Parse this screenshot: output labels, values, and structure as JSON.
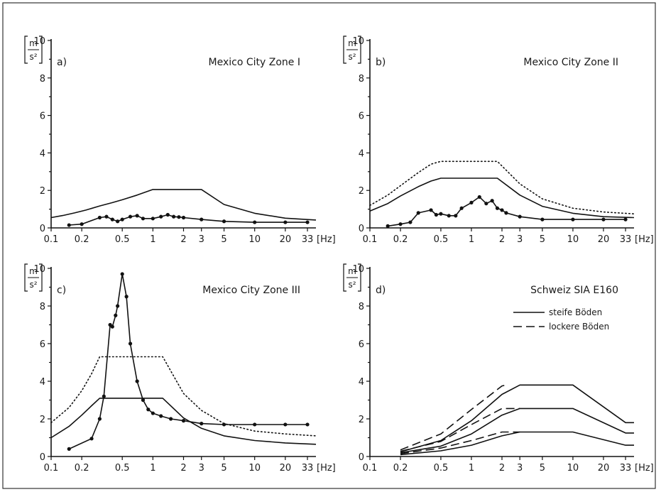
{
  "x_unit": "[Hz]",
  "y_unit": {
    "numerator": "m",
    "denominator": "s²"
  },
  "chart_data": [
    {
      "type": "line",
      "letter": "a)",
      "title": "Mexico City Zone I",
      "x_scale": "log",
      "xlim": [
        0.1,
        40
      ],
      "ylim": [
        0,
        10
      ],
      "x_ticks": [
        "0.1",
        "0.2",
        "0.5",
        "1",
        "2",
        "3",
        "5",
        "10",
        "20",
        "33"
      ],
      "y_ticks": [
        "0",
        "2",
        "4",
        "6",
        "8",
        "10"
      ],
      "series": [
        {
          "style": "solid",
          "markers": false,
          "x": [
            0.1,
            0.13,
            0.17,
            0.22,
            0.3,
            0.4,
            0.5,
            0.7,
            1,
            1.2,
            2,
            3,
            5,
            10,
            20,
            40
          ],
          "y": [
            0.55,
            0.66,
            0.8,
            0.95,
            1.17,
            1.35,
            1.5,
            1.75,
            2.05,
            2.05,
            2.05,
            2.05,
            1.25,
            0.78,
            0.52,
            0.42
          ]
        },
        {
          "style": "solid",
          "markers": true,
          "x": [
            0.15,
            0.2,
            0.3,
            0.35,
            0.4,
            0.45,
            0.5,
            0.6,
            0.7,
            0.8,
            1,
            1.2,
            1.4,
            1.6,
            1.8,
            2,
            3,
            5,
            10,
            20,
            33
          ],
          "y": [
            0.15,
            0.2,
            0.55,
            0.6,
            0.45,
            0.35,
            0.45,
            0.6,
            0.65,
            0.5,
            0.5,
            0.6,
            0.7,
            0.6,
            0.58,
            0.55,
            0.45,
            0.35,
            0.3,
            0.3,
            0.3
          ]
        }
      ]
    },
    {
      "type": "line",
      "letter": "b)",
      "title": "Mexico City Zone II",
      "x_scale": "log",
      "xlim": [
        0.1,
        40
      ],
      "ylim": [
        0,
        10
      ],
      "x_ticks": [
        "0.1",
        "0.2",
        "0.5",
        "1",
        "2",
        "3",
        "5",
        "10",
        "20",
        "33"
      ],
      "y_ticks": [
        "0",
        "2",
        "4",
        "6",
        "8",
        "10"
      ],
      "series": [
        {
          "style": "dotted",
          "markers": false,
          "x": [
            0.1,
            0.15,
            0.2,
            0.3,
            0.4,
            0.5,
            1,
            1.8,
            3,
            5,
            10,
            20,
            40
          ],
          "y": [
            1.2,
            1.75,
            2.25,
            2.95,
            3.4,
            3.55,
            3.55,
            3.55,
            2.35,
            1.55,
            1.05,
            0.85,
            0.75
          ]
        },
        {
          "style": "solid",
          "markers": false,
          "x": [
            0.1,
            0.15,
            0.2,
            0.3,
            0.4,
            0.5,
            1,
            1.8,
            3,
            5,
            10,
            20,
            40
          ],
          "y": [
            0.9,
            1.3,
            1.7,
            2.2,
            2.5,
            2.65,
            2.65,
            2.65,
            1.75,
            1.15,
            0.78,
            0.6,
            0.55
          ]
        },
        {
          "style": "solid",
          "markers": true,
          "x": [
            0.15,
            0.2,
            0.25,
            0.3,
            0.4,
            0.45,
            0.5,
            0.6,
            0.7,
            0.8,
            1,
            1.2,
            1.4,
            1.6,
            1.8,
            2,
            2.2,
            3,
            5,
            10,
            20,
            33
          ],
          "y": [
            0.1,
            0.2,
            0.3,
            0.8,
            0.95,
            0.7,
            0.75,
            0.65,
            0.65,
            1.05,
            1.35,
            1.65,
            1.3,
            1.45,
            1.05,
            0.95,
            0.8,
            0.6,
            0.45,
            0.45,
            0.45,
            0.45
          ]
        }
      ]
    },
    {
      "type": "line",
      "letter": "c)",
      "title": "Mexico City Zone III",
      "x_scale": "log",
      "xlim": [
        0.1,
        40
      ],
      "ylim": [
        0,
        10
      ],
      "x_ticks": [
        "0.1",
        "0.2",
        "0.5",
        "1",
        "2",
        "3",
        "5",
        "10",
        "20",
        "33"
      ],
      "y_ticks": [
        "0",
        "2",
        "4",
        "6",
        "8",
        "10"
      ],
      "series": [
        {
          "style": "dotted",
          "markers": false,
          "x": [
            0.1,
            0.15,
            0.2,
            0.25,
            0.3,
            0.5,
            1,
            1.25,
            2,
            3,
            5,
            10,
            20,
            40
          ],
          "y": [
            1.8,
            2.6,
            3.5,
            4.4,
            5.3,
            5.3,
            5.3,
            5.3,
            3.35,
            2.45,
            1.75,
            1.35,
            1.2,
            1.1
          ]
        },
        {
          "style": "solid",
          "markers": false,
          "x": [
            0.1,
            0.15,
            0.2,
            0.25,
            0.3,
            0.5,
            1,
            1.25,
            2,
            3,
            5,
            10,
            20,
            40
          ],
          "y": [
            1.0,
            1.6,
            2.2,
            2.7,
            3.1,
            3.1,
            3.1,
            3.1,
            2.05,
            1.5,
            1.1,
            0.85,
            0.72,
            0.65
          ]
        },
        {
          "style": "solid",
          "markers": true,
          "x": [
            0.15,
            0.25,
            0.3,
            0.33,
            0.38,
            0.4,
            0.43,
            0.45,
            0.5,
            0.55,
            0.6,
            0.7,
            0.8,
            0.9,
            1,
            1.2,
            1.5,
            2,
            3,
            5,
            10,
            20,
            33
          ],
          "y": [
            0.4,
            0.95,
            2.0,
            3.2,
            7.0,
            6.9,
            7.5,
            8.0,
            9.7,
            8.5,
            6.0,
            4.0,
            3.0,
            2.5,
            2.3,
            2.15,
            2.0,
            1.9,
            1.75,
            1.7,
            1.7,
            1.7,
            1.7
          ]
        }
      ]
    },
    {
      "type": "line",
      "letter": "d)",
      "title": "Schweiz SIA E160",
      "x_scale": "log",
      "xlim": [
        0.1,
        40
      ],
      "ylim": [
        0,
        10
      ],
      "x_ticks": [
        "0.1",
        "0.2",
        "0.5",
        "1",
        "2",
        "3",
        "5",
        "10",
        "20",
        "33"
      ],
      "y_ticks": [
        "0",
        "2",
        "4",
        "6",
        "8",
        "10"
      ],
      "legend": {
        "position": "top-right",
        "entries": [
          {
            "label": "steife Böden",
            "style": "solid"
          },
          {
            "label": "lockere Böden",
            "style": "dashed"
          }
        ]
      },
      "series": [
        {
          "name": "steife Böden",
          "style": "solid",
          "markers": false,
          "x": [
            0.2,
            0.5,
            1,
            2,
            3,
            10,
            33,
            40
          ],
          "y": [
            0.25,
            0.85,
            1.9,
            3.3,
            3.8,
            3.8,
            1.8,
            1.8
          ]
        },
        {
          "name": "steife Böden",
          "style": "solid",
          "markers": false,
          "x": [
            0.2,
            0.5,
            1,
            2,
            3,
            10,
            33,
            40
          ],
          "y": [
            0.2,
            0.55,
            1.2,
            2.2,
            2.55,
            2.55,
            1.25,
            1.25
          ]
        },
        {
          "name": "steife Böden",
          "style": "solid",
          "markers": false,
          "x": [
            0.2,
            0.5,
            1,
            2,
            3,
            10,
            33,
            40
          ],
          "y": [
            0.1,
            0.3,
            0.6,
            1.1,
            1.3,
            1.3,
            0.6,
            0.6
          ]
        },
        {
          "name": "lockere Böden",
          "style": "dashed",
          "markers": false,
          "x": [
            0.2,
            0.5,
            1,
            2,
            2.2
          ],
          "y": [
            0.35,
            1.2,
            2.5,
            3.75,
            3.8
          ]
        },
        {
          "name": "lockere Böden",
          "style": "dashed",
          "markers": false,
          "x": [
            0.2,
            0.5,
            1,
            2,
            3
          ],
          "y": [
            0.28,
            0.8,
            1.7,
            2.55,
            2.55
          ]
        },
        {
          "name": "lockere Böden",
          "style": "dashed",
          "markers": false,
          "x": [
            0.2,
            0.5,
            1,
            2,
            3
          ],
          "y": [
            0.15,
            0.45,
            0.85,
            1.3,
            1.3
          ]
        }
      ]
    }
  ]
}
